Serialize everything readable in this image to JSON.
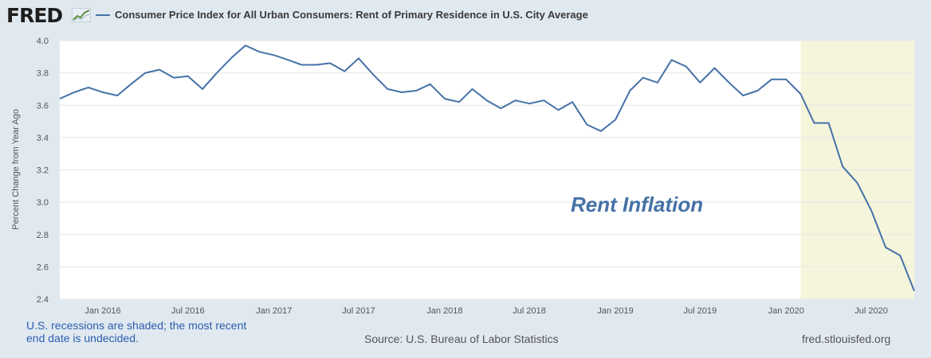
{
  "header": {
    "logo_text": "FRED",
    "series_title": "Consumer Price Index for All Urban Consumers: Rent of Primary Residence in U.S. City Average"
  },
  "annotation": "Rent Inflation",
  "footer": {
    "recession_note": "U.S. recessions are shaded; the most recent end date is undecided.",
    "source": "Source: U.S. Bureau of Labor Statistics",
    "site": "fred.stlouisfed.org"
  },
  "colors": {
    "line": "#4572a7",
    "recession": "#f5f5dc",
    "background": "#e1e9f0",
    "annotation": "#4572a7"
  },
  "chart_data": {
    "type": "line",
    "title": "Consumer Price Index for All Urban Consumers: Rent of Primary Residence in U.S. City Average",
    "ylabel": "Percent Change from Year Ago",
    "xlabel": "",
    "ylim": [
      2.4,
      4.0
    ],
    "yticks": [
      2.4,
      2.6,
      2.8,
      3.0,
      3.2,
      3.4,
      3.6,
      3.8,
      4.0
    ],
    "grid": true,
    "xlim": [
      "2015-10-01",
      "2020-10-01"
    ],
    "xticks": [
      {
        "label": "Jan 2016",
        "date": "2016-01-01"
      },
      {
        "label": "Jul 2016",
        "date": "2016-07-01"
      },
      {
        "label": "Jan 2017",
        "date": "2017-01-01"
      },
      {
        "label": "Jul 2017",
        "date": "2017-07-01"
      },
      {
        "label": "Jan 2018",
        "date": "2018-01-01"
      },
      {
        "label": "Jul 2018",
        "date": "2018-07-01"
      },
      {
        "label": "Jan 2019",
        "date": "2019-01-01"
      },
      {
        "label": "Jul 2019",
        "date": "2019-07-01"
      },
      {
        "label": "Jan 2020",
        "date": "2020-01-01"
      },
      {
        "label": "Jul 2020",
        "date": "2020-07-01"
      }
    ],
    "recessions": [
      {
        "start": "2020-02-01",
        "end": "2020-10-01"
      }
    ],
    "series": [
      {
        "name": "Consumer Price Index for All Urban Consumers: Rent of Primary Residence in U.S. City Average",
        "x": [
          "2015-10-01",
          "2015-11-01",
          "2015-12-01",
          "2016-01-01",
          "2016-02-01",
          "2016-03-01",
          "2016-04-01",
          "2016-05-01",
          "2016-06-01",
          "2016-07-01",
          "2016-08-01",
          "2016-09-01",
          "2016-10-01",
          "2016-11-01",
          "2016-12-01",
          "2017-01-01",
          "2017-02-01",
          "2017-03-01",
          "2017-04-01",
          "2017-05-01",
          "2017-06-01",
          "2017-07-01",
          "2017-08-01",
          "2017-09-01",
          "2017-10-01",
          "2017-11-01",
          "2017-12-01",
          "2018-01-01",
          "2018-02-01",
          "2018-03-01",
          "2018-04-01",
          "2018-05-01",
          "2018-06-01",
          "2018-07-01",
          "2018-08-01",
          "2018-09-01",
          "2018-10-01",
          "2018-11-01",
          "2018-12-01",
          "2019-01-01",
          "2019-02-01",
          "2019-03-01",
          "2019-04-01",
          "2019-05-01",
          "2019-06-01",
          "2019-07-01",
          "2019-08-01",
          "2019-09-01",
          "2019-10-01",
          "2019-11-01",
          "2019-12-01",
          "2020-01-01",
          "2020-02-01",
          "2020-03-01",
          "2020-04-01",
          "2020-05-01",
          "2020-06-01",
          "2020-07-01",
          "2020-08-01",
          "2020-09-01",
          "2020-10-01"
        ],
        "values": [
          3.64,
          3.68,
          3.71,
          3.68,
          3.66,
          3.73,
          3.8,
          3.82,
          3.77,
          3.78,
          3.7,
          3.8,
          3.89,
          3.97,
          3.93,
          3.91,
          3.88,
          3.85,
          3.85,
          3.86,
          3.81,
          3.89,
          3.79,
          3.7,
          3.68,
          3.69,
          3.73,
          3.64,
          3.62,
          3.7,
          3.63,
          3.58,
          3.63,
          3.61,
          3.63,
          3.57,
          3.62,
          3.48,
          3.44,
          3.51,
          3.69,
          3.77,
          3.74,
          3.88,
          3.84,
          3.74,
          3.83,
          3.74,
          3.66,
          3.69,
          3.76,
          3.76,
          3.67,
          3.49,
          3.49,
          3.22,
          3.12,
          2.95,
          2.72,
          2.67,
          2.45
        ]
      }
    ]
  }
}
